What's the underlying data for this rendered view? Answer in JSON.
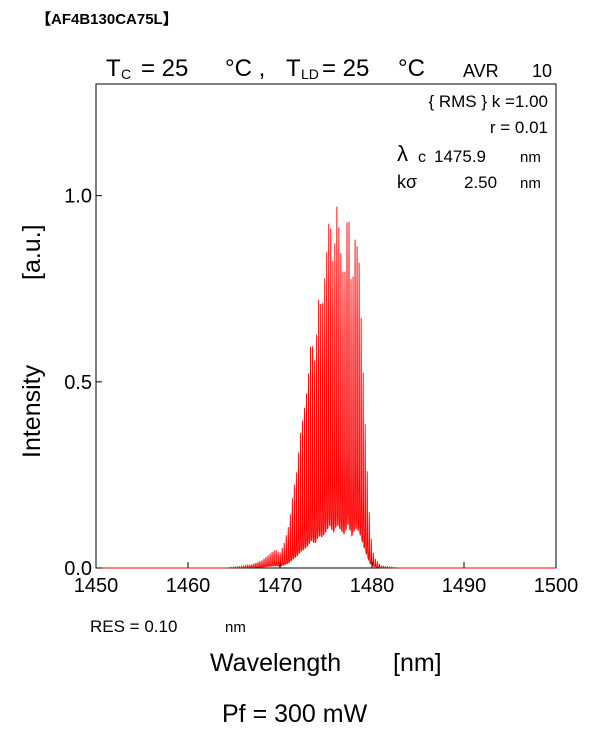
{
  "header": {
    "part_number": "【AF4B130CA75L】",
    "tc_label": "T",
    "tc_sub": "C",
    "tc_eq": "= 25",
    "tc_unit": "°C ,",
    "tld_label": "T",
    "tld_sub": "LD",
    "tld_eq": "= 25",
    "tld_unit": "°C",
    "avr_label": "AVR",
    "avr_value": "10"
  },
  "annotations": {
    "rms_line": "{ RMS } k =1.00",
    "r_line": "r = 0.01",
    "lambda_symbol": "λ",
    "lambda_sub": "c",
    "lambda_value": "1475.9",
    "lambda_unit": "nm",
    "ksigma_label": "kσ",
    "ksigma_value": "2.50",
    "ksigma_unit": "nm",
    "res_label": "RES = 0.10",
    "res_unit": "nm",
    "pf_label": "Pf = 300 mW"
  },
  "chart_data": {
    "type": "line",
    "xlabel": "Wavelength",
    "xunit": "[nm]",
    "ylabel": "Intensity",
    "yunit": "[a.u.]",
    "xlim": [
      1450,
      1500
    ],
    "ylim": [
      0,
      1.3
    ],
    "x_ticks": [
      1450,
      1460,
      1470,
      1480,
      1490,
      1500
    ],
    "x_tick_labels": [
      "1450",
      "1460",
      "1470",
      "1480",
      "1490",
      "1500"
    ],
    "y_ticks": [
      0,
      0.5,
      1.0
    ],
    "y_tick_labels": [
      "0.0",
      "0.5",
      "1.0"
    ],
    "grid": false,
    "line_color": "#ff0000",
    "series": [
      {
        "x": [
          1450,
          1464,
          1466,
          1467,
          1468,
          1469,
          1469.5,
          1470,
          1470.5,
          1471,
          1471.4,
          1471.8,
          1472.2,
          1472.6,
          1473.0,
          1473.4,
          1473.8,
          1474.2,
          1474.6,
          1475.0,
          1475.4,
          1475.8,
          1476.2,
          1476.6,
          1477.0,
          1477.4,
          1477.8,
          1478.2,
          1478.6,
          1479.0,
          1479.4,
          1479.8,
          1480.2,
          1481,
          1483,
          1500
        ],
        "y": [
          0.0,
          0.0,
          0.005,
          0.01,
          0.02,
          0.04,
          0.05,
          0.04,
          0.07,
          0.12,
          0.2,
          0.26,
          0.36,
          0.42,
          0.49,
          0.62,
          0.55,
          0.72,
          0.7,
          0.82,
          0.96,
          0.8,
          0.98,
          0.85,
          0.76,
          1.0,
          0.72,
          0.9,
          0.82,
          0.55,
          0.3,
          0.1,
          0.03,
          0.005,
          0.0,
          0.0
        ]
      }
    ]
  }
}
